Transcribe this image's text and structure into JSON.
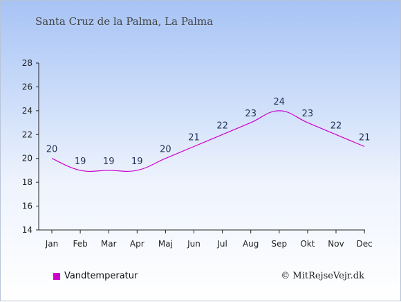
{
  "header": {
    "title": "Santa Cruz de la Palma, La Palma"
  },
  "legend": {
    "label": "Vandtemperatur",
    "color": "#cc00cc"
  },
  "footer": {
    "credit": "© MitRejseVejr.dk"
  },
  "chart_data": {
    "type": "line",
    "categories": [
      "Jan",
      "Feb",
      "Mar",
      "Apr",
      "Maj",
      "Jun",
      "Jul",
      "Aug",
      "Sep",
      "Okt",
      "Nov",
      "Dec"
    ],
    "series": [
      {
        "name": "Vandtemperatur",
        "values": [
          20,
          19,
          19,
          19,
          20,
          21,
          22,
          23,
          24,
          23,
          22,
          21
        ],
        "color": "#cc00cc"
      }
    ],
    "title": "Santa Cruz de la Palma, La Palma",
    "xlabel": "",
    "ylabel": "",
    "ylim": [
      14,
      28
    ],
    "yticks": [
      14,
      16,
      18,
      20,
      22,
      24,
      26,
      28
    ],
    "grid": false,
    "legend_position": "bottom-left"
  }
}
